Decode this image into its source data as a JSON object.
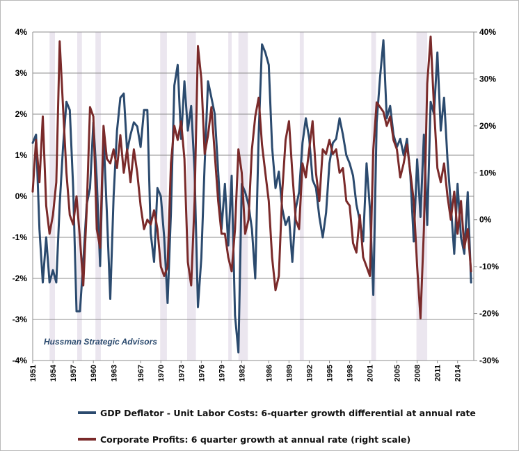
{
  "chart_data": {
    "type": "line",
    "annotation": "Hussman Strategic Advisors",
    "x_ticks": [
      "1951",
      "1954",
      "1957",
      "1960",
      "1963",
      "1967",
      "1970",
      "1973",
      "1976",
      "1979",
      "1982",
      "1986",
      "1989",
      "1992",
      "1995",
      "1998",
      "2001",
      "2005",
      "2008",
      "2011",
      "2014"
    ],
    "x_range": [
      1951,
      2016.4
    ],
    "left_axis": {
      "ticks": [
        "4%",
        "3%",
        "2%",
        "1%",
        "0%",
        "-1%",
        "-2%",
        "-3%",
        "-4%"
      ],
      "ylim": [
        -4,
        4
      ]
    },
    "right_axis": {
      "ticks": [
        "40%",
        "30%",
        "20%",
        "10%",
        "0%",
        "-10%",
        "-20%",
        "-30%"
      ],
      "ylim": [
        -30,
        40
      ]
    },
    "grid": "horizontal",
    "recessions": [
      [
        1953.5,
        1954.3
      ],
      [
        1957.6,
        1958.3
      ],
      [
        1960.3,
        1961.1
      ],
      [
        1969.9,
        1970.9
      ],
      [
        1973.9,
        1975.2
      ],
      [
        1980.0,
        1980.5
      ],
      [
        1981.5,
        1982.9
      ],
      [
        1990.6,
        1991.2
      ],
      [
        2001.2,
        2001.9
      ],
      [
        2007.9,
        2009.5
      ]
    ],
    "series": [
      {
        "name": "GDP Deflator - Unit Labor Costs: 6-quarter growth differential at annual rate",
        "axis": "left",
        "color": "#2b4a6e",
        "points": [
          [
            1951.0,
            1.3
          ],
          [
            1951.5,
            1.5
          ],
          [
            1952.0,
            -0.8
          ],
          [
            1952.5,
            -2.1
          ],
          [
            1953.0,
            -1.0
          ],
          [
            1953.5,
            -2.1
          ],
          [
            1954.0,
            -1.8
          ],
          [
            1954.5,
            -2.1
          ],
          [
            1955.0,
            -0.2
          ],
          [
            1955.5,
            1.2
          ],
          [
            1956.0,
            2.3
          ],
          [
            1956.5,
            2.1
          ],
          [
            1957.0,
            0.2
          ],
          [
            1957.5,
            -2.8
          ],
          [
            1958.0,
            -2.8
          ],
          [
            1958.5,
            -1.6
          ],
          [
            1959.0,
            -0.2
          ],
          [
            1959.5,
            0.2
          ],
          [
            1960.0,
            1.8
          ],
          [
            1960.5,
            0.4
          ],
          [
            1961.0,
            -1.7
          ],
          [
            1961.5,
            1.5
          ],
          [
            1962.0,
            -0.4
          ],
          [
            1962.5,
            -2.5
          ],
          [
            1963.0,
            0.0
          ],
          [
            1963.5,
            1.6
          ],
          [
            1964.0,
            2.4
          ],
          [
            1964.5,
            2.5
          ],
          [
            1965.0,
            1.1
          ],
          [
            1965.5,
            1.5
          ],
          [
            1966.0,
            1.8
          ],
          [
            1966.5,
            1.7
          ],
          [
            1967.0,
            1.2
          ],
          [
            1967.5,
            2.1
          ],
          [
            1968.0,
            2.1
          ],
          [
            1968.5,
            -0.9
          ],
          [
            1969.0,
            -1.6
          ],
          [
            1969.5,
            0.2
          ],
          [
            1970.0,
            0.0
          ],
          [
            1970.5,
            -1.0
          ],
          [
            1971.0,
            -2.6
          ],
          [
            1971.5,
            -0.4
          ],
          [
            1972.0,
            2.7
          ],
          [
            1972.5,
            3.2
          ],
          [
            1973.0,
            1.4
          ],
          [
            1973.5,
            2.8
          ],
          [
            1974.0,
            1.6
          ],
          [
            1974.5,
            2.2
          ],
          [
            1975.0,
            0.6
          ],
          [
            1975.5,
            -2.7
          ],
          [
            1976.0,
            -1.5
          ],
          [
            1976.5,
            0.8
          ],
          [
            1977.0,
            2.8
          ],
          [
            1977.5,
            2.4
          ],
          [
            1978.0,
            2.0
          ],
          [
            1978.5,
            0.6
          ],
          [
            1979.0,
            -0.8
          ],
          [
            1979.5,
            0.3
          ],
          [
            1980.0,
            -1.2
          ],
          [
            1980.5,
            0.5
          ],
          [
            1981.0,
            -2.9
          ],
          [
            1981.5,
            -3.8
          ],
          [
            1982.0,
            0.3
          ],
          [
            1982.5,
            0.1
          ],
          [
            1983.0,
            -0.2
          ],
          [
            1983.5,
            -0.8
          ],
          [
            1984.0,
            -2.0
          ],
          [
            1984.5,
            1.5
          ],
          [
            1985.0,
            3.7
          ],
          [
            1985.5,
            3.5
          ],
          [
            1986.0,
            3.2
          ],
          [
            1986.5,
            1.2
          ],
          [
            1987.0,
            0.2
          ],
          [
            1987.5,
            0.6
          ],
          [
            1988.0,
            -0.3
          ],
          [
            1988.5,
            -0.7
          ],
          [
            1989.0,
            -0.5
          ],
          [
            1989.5,
            -1.6
          ],
          [
            1990.0,
            -0.3
          ],
          [
            1990.5,
            0.1
          ],
          [
            1991.0,
            1.3
          ],
          [
            1991.5,
            1.9
          ],
          [
            1992.0,
            1.4
          ],
          [
            1992.5,
            0.4
          ],
          [
            1993.0,
            0.2
          ],
          [
            1993.5,
            -0.5
          ],
          [
            1994.0,
            -1.0
          ],
          [
            1994.5,
            -0.4
          ],
          [
            1995.0,
            0.8
          ],
          [
            1995.5,
            1.3
          ],
          [
            1996.0,
            1.4
          ],
          [
            1996.5,
            1.9
          ],
          [
            1997.0,
            1.5
          ],
          [
            1997.5,
            1.0
          ],
          [
            1998.0,
            0.8
          ],
          [
            1998.5,
            0.5
          ],
          [
            1999.0,
            -0.2
          ],
          [
            1999.5,
            -0.6
          ],
          [
            2000.0,
            -1.1
          ],
          [
            2000.5,
            0.8
          ],
          [
            2001.0,
            -0.3
          ],
          [
            2001.5,
            -2.4
          ],
          [
            2002.0,
            1.8
          ],
          [
            2002.5,
            2.9
          ],
          [
            2003.0,
            3.8
          ],
          [
            2003.5,
            1.9
          ],
          [
            2004.0,
            2.2
          ],
          [
            2004.5,
            1.5
          ],
          [
            2005.0,
            1.2
          ],
          [
            2005.5,
            1.4
          ],
          [
            2006.0,
            1.0
          ],
          [
            2006.5,
            1.4
          ],
          [
            2007.0,
            0.5
          ],
          [
            2007.5,
            -1.1
          ],
          [
            2008.0,
            0.9
          ],
          [
            2008.5,
            -0.5
          ],
          [
            2009.0,
            1.5
          ],
          [
            2009.5,
            -0.7
          ],
          [
            2010.0,
            2.3
          ],
          [
            2010.5,
            2.0
          ],
          [
            2011.0,
            3.5
          ],
          [
            2011.5,
            1.6
          ],
          [
            2012.0,
            2.4
          ],
          [
            2012.5,
            0.9
          ],
          [
            2013.0,
            -0.2
          ],
          [
            2013.5,
            -1.4
          ],
          [
            2014.0,
            0.3
          ],
          [
            2014.5,
            -1.0
          ],
          [
            2015.0,
            -1.4
          ],
          [
            2015.5,
            0.1
          ],
          [
            2016.0,
            -2.1
          ]
        ]
      },
      {
        "name": "Corporate Profits: 6 quarter growth at annual rate (right scale)",
        "axis": "right",
        "color": "#7a2a2a",
        "points": [
          [
            1951.0,
            6
          ],
          [
            1951.5,
            17
          ],
          [
            1952.0,
            8
          ],
          [
            1952.5,
            22
          ],
          [
            1953.0,
            3
          ],
          [
            1953.5,
            -3
          ],
          [
            1954.0,
            1
          ],
          [
            1954.5,
            8
          ],
          [
            1955.0,
            38
          ],
          [
            1955.5,
            24
          ],
          [
            1956.0,
            10
          ],
          [
            1956.5,
            1
          ],
          [
            1957.0,
            -1
          ],
          [
            1957.5,
            5
          ],
          [
            1958.0,
            -4
          ],
          [
            1958.5,
            -14
          ],
          [
            1959.0,
            2
          ],
          [
            1959.5,
            24
          ],
          [
            1960.0,
            22
          ],
          [
            1960.5,
            -2
          ],
          [
            1961.0,
            -6
          ],
          [
            1961.5,
            20
          ],
          [
            1962.0,
            13
          ],
          [
            1962.5,
            12
          ],
          [
            1963.0,
            15
          ],
          [
            1963.5,
            11
          ],
          [
            1964.0,
            18
          ],
          [
            1964.5,
            10
          ],
          [
            1965.0,
            15
          ],
          [
            1965.5,
            8
          ],
          [
            1966.0,
            15
          ],
          [
            1966.5,
            10
          ],
          [
            1967.0,
            3
          ],
          [
            1967.5,
            -2
          ],
          [
            1968.0,
            0
          ],
          [
            1968.5,
            -1
          ],
          [
            1969.0,
            2
          ],
          [
            1969.5,
            -2
          ],
          [
            1970.0,
            -10
          ],
          [
            1970.5,
            -12
          ],
          [
            1971.0,
            -10
          ],
          [
            1971.5,
            12
          ],
          [
            1972.0,
            20
          ],
          [
            1972.5,
            17
          ],
          [
            1973.0,
            21
          ],
          [
            1973.5,
            13
          ],
          [
            1974.0,
            -9
          ],
          [
            1974.5,
            -14
          ],
          [
            1975.0,
            4
          ],
          [
            1975.5,
            37
          ],
          [
            1976.0,
            30
          ],
          [
            1976.5,
            14
          ],
          [
            1977.0,
            18
          ],
          [
            1977.5,
            24
          ],
          [
            1978.0,
            14
          ],
          [
            1978.5,
            4
          ],
          [
            1979.0,
            -3
          ],
          [
            1979.5,
            -3
          ],
          [
            1980.0,
            -8
          ],
          [
            1980.5,
            -11
          ],
          [
            1981.0,
            -2
          ],
          [
            1981.5,
            15
          ],
          [
            1982.0,
            10
          ],
          [
            1982.5,
            -3
          ],
          [
            1983.0,
            0
          ],
          [
            1983.5,
            15
          ],
          [
            1984.0,
            22
          ],
          [
            1984.5,
            26
          ],
          [
            1985.0,
            16
          ],
          [
            1985.5,
            10
          ],
          [
            1986.0,
            4
          ],
          [
            1986.5,
            -8
          ],
          [
            1987.0,
            -15
          ],
          [
            1987.5,
            -12
          ],
          [
            1988.0,
            6
          ],
          [
            1988.5,
            17
          ],
          [
            1989.0,
            21
          ],
          [
            1989.5,
            10
          ],
          [
            1990.0,
            0
          ],
          [
            1990.5,
            -2
          ],
          [
            1991.0,
            12
          ],
          [
            1991.5,
            9
          ],
          [
            1992.0,
            15
          ],
          [
            1992.5,
            21
          ],
          [
            1993.0,
            10
          ],
          [
            1993.5,
            4
          ],
          [
            1994.0,
            15
          ],
          [
            1994.5,
            14
          ],
          [
            1995.0,
            17
          ],
          [
            1995.5,
            14
          ],
          [
            1996.0,
            15
          ],
          [
            1996.5,
            10
          ],
          [
            1997.0,
            11
          ],
          [
            1997.5,
            4
          ],
          [
            1998.0,
            3
          ],
          [
            1998.5,
            -5
          ],
          [
            1999.0,
            -7
          ],
          [
            1999.5,
            1
          ],
          [
            2000.0,
            -8
          ],
          [
            2000.5,
            -10
          ],
          [
            2001.0,
            -12
          ],
          [
            2001.5,
            15
          ],
          [
            2002.0,
            25
          ],
          [
            2002.5,
            24
          ],
          [
            2003.0,
            23
          ],
          [
            2003.5,
            20
          ],
          [
            2004.0,
            22
          ],
          [
            2004.5,
            17
          ],
          [
            2005.0,
            15
          ],
          [
            2005.5,
            9
          ],
          [
            2006.0,
            12
          ],
          [
            2006.5,
            16
          ],
          [
            2007.0,
            10
          ],
          [
            2007.5,
            4
          ],
          [
            2008.0,
            -10
          ],
          [
            2008.5,
            -21
          ],
          [
            2009.0,
            -2
          ],
          [
            2009.5,
            29
          ],
          [
            2010.0,
            39
          ],
          [
            2010.5,
            24
          ],
          [
            2011.0,
            11
          ],
          [
            2011.5,
            8
          ],
          [
            2012.0,
            12
          ],
          [
            2012.5,
            5
          ],
          [
            2013.0,
            0
          ],
          [
            2013.5,
            6
          ],
          [
            2014.0,
            -3
          ],
          [
            2014.5,
            4
          ],
          [
            2015.0,
            -6
          ],
          [
            2015.5,
            -2
          ],
          [
            2016.0,
            -11
          ]
        ]
      }
    ]
  }
}
